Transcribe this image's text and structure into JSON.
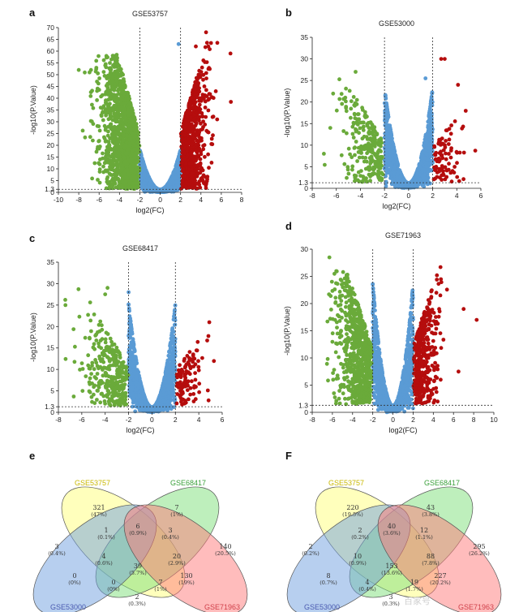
{
  "colors": {
    "up": "#b50d0d",
    "down": "#6aaa3a",
    "ns": "#5a9bd5"
  },
  "chart_data": [
    {
      "panel": "a",
      "type": "scatter",
      "title": "GSE53757",
      "xlabel": "log2(FC)",
      "ylabel": "-log10(P.Value)",
      "xlim": [
        -10,
        8
      ],
      "ylim": [
        0,
        70
      ],
      "xticks": [
        "-10",
        "-8",
        "-6",
        "-4",
        "-2",
        "0",
        "2",
        "4",
        "6",
        "8"
      ],
      "yticks": [
        "0",
        "1.3",
        "5",
        "10",
        "15",
        "20",
        "25",
        "30",
        "35",
        "40",
        "45",
        "50",
        "55",
        "60",
        "65",
        "70"
      ],
      "thresholds": {
        "fc": [
          -2,
          2
        ],
        "p": 1.3
      },
      "highlights": [
        {
          "x": 6.9,
          "y": 59
        },
        {
          "x": 4.5,
          "y": 68
        },
        {
          "x": 3.5,
          "y": 62
        },
        {
          "x": 1.8,
          "y": 63
        },
        {
          "x": -8.0,
          "y": 52
        },
        {
          "x": -6.8,
          "y": 52
        }
      ]
    },
    {
      "panel": "b",
      "type": "scatter",
      "title": "GSE53000",
      "xlabel": "log2(FC)",
      "ylabel": "-log10(P.Value)",
      "xlim": [
        -8,
        6
      ],
      "ylim": [
        0,
        35
      ],
      "xticks": [
        "-8",
        "-6",
        "-4",
        "-2",
        "0",
        "2",
        "4",
        "6"
      ],
      "yticks": [
        "0",
        "1.3",
        "5",
        "10",
        "15",
        "20",
        "25",
        "30",
        "35"
      ],
      "thresholds": {
        "fc": [
          -2,
          2
        ],
        "p": 1.3
      },
      "highlights": [
        {
          "x": 3.0,
          "y": 30
        },
        {
          "x": 2.7,
          "y": 30
        },
        {
          "x": 4.1,
          "y": 24
        },
        {
          "x": 1.4,
          "y": 25.5
        },
        {
          "x": -6.5,
          "y": 14
        },
        {
          "x": -4.4,
          "y": 27
        }
      ]
    },
    {
      "panel": "c",
      "type": "scatter",
      "title": "GSE68417",
      "xlabel": "log2(FC)",
      "ylabel": "-log10(P.Value)",
      "xlim": [
        -8,
        6
      ],
      "ylim": [
        0,
        35
      ],
      "xticks": [
        "-8",
        "-6",
        "-4",
        "-2",
        "0",
        "2",
        "4",
        "6"
      ],
      "yticks": [
        "0",
        "1.3",
        "5",
        "10",
        "15",
        "20",
        "25",
        "30",
        "35"
      ],
      "thresholds": {
        "fc": [
          -2,
          2
        ],
        "p": 1.3
      },
      "highlights": [
        {
          "x": 4.9,
          "y": 21
        },
        {
          "x": -3.8,
          "y": 29
        },
        {
          "x": -7.4,
          "y": 25
        },
        {
          "x": -4.0,
          "y": 27.5
        },
        {
          "x": -2.0,
          "y": 28
        }
      ]
    },
    {
      "panel": "d",
      "type": "scatter",
      "title": "GSE71963",
      "xlabel": "log2(FC)",
      "ylabel": "-log10(P.Value)",
      "xlim": [
        -8,
        10
      ],
      "ylim": [
        0,
        30
      ],
      "xticks": [
        "-8",
        "-6",
        "-4",
        "-2",
        "0",
        "2",
        "4",
        "6",
        "8",
        "10"
      ],
      "yticks": [
        "0",
        "1.3",
        "5",
        "10",
        "15",
        "20",
        "25",
        "30"
      ],
      "thresholds": {
        "fc": [
          -2,
          2
        ],
        "p": 1.3
      },
      "highlights": [
        {
          "x": -6.3,
          "y": 28.5
        },
        {
          "x": 8.3,
          "y": 17
        },
        {
          "x": 7.0,
          "y": 19
        },
        {
          "x": 4.7,
          "y": 21.5
        },
        {
          "x": 6.5,
          "y": 7.5
        }
      ]
    },
    {
      "panel": "e",
      "type": "venn",
      "sets": [
        "GSE53757",
        "GSE68417",
        "GSE53000",
        "GSE71963"
      ],
      "regions": [
        {
          "n": "321",
          "p": "(47%)"
        },
        {
          "n": "7",
          "p": "(1%)"
        },
        {
          "n": "3",
          "p": "(0.4%)"
        },
        {
          "n": "140",
          "p": "(20.5%)"
        },
        {
          "n": "1",
          "p": "(0.1%)"
        },
        {
          "n": "6",
          "p": "(0.9%)"
        },
        {
          "n": "3",
          "p": "(0.4%)"
        },
        {
          "n": "4",
          "p": "(0.6%)"
        },
        {
          "n": "20",
          "p": "(2.9%)"
        },
        {
          "n": "0",
          "p": "(0%)"
        },
        {
          "n": "39",
          "p": "(5.7%)"
        },
        {
          "n": "130",
          "p": "(19%)"
        },
        {
          "n": "0",
          "p": "(0%)"
        },
        {
          "n": "7",
          "p": "(1%)"
        },
        {
          "n": "2",
          "p": "(0.3%)"
        }
      ]
    },
    {
      "panel": "F",
      "type": "venn",
      "sets": [
        "GSE53757",
        "GSE68417",
        "GSE53000",
        "GSE71963"
      ],
      "regions": [
        {
          "n": "220",
          "p": "(19.5%)"
        },
        {
          "n": "43",
          "p": "(3.8%)"
        },
        {
          "n": "2",
          "p": "(0.2%)"
        },
        {
          "n": "295",
          "p": "(26.2%)"
        },
        {
          "n": "2",
          "p": "(0.2%)"
        },
        {
          "n": "40",
          "p": "(3.6%)"
        },
        {
          "n": "12",
          "p": "(1.1%)"
        },
        {
          "n": "10",
          "p": "(0.9%)"
        },
        {
          "n": "88",
          "p": "(7.8%)"
        },
        {
          "n": "8",
          "p": "(0.7%)"
        },
        {
          "n": "153",
          "p": "(13.6%)"
        },
        {
          "n": "227",
          "p": "(20.2%)"
        },
        {
          "n": "4",
          "p": "(0.4%)"
        },
        {
          "n": "19",
          "p": "(1.7%)"
        },
        {
          "n": "3",
          "p": "(0.3%)"
        }
      ]
    }
  ],
  "watermark": "百家号"
}
